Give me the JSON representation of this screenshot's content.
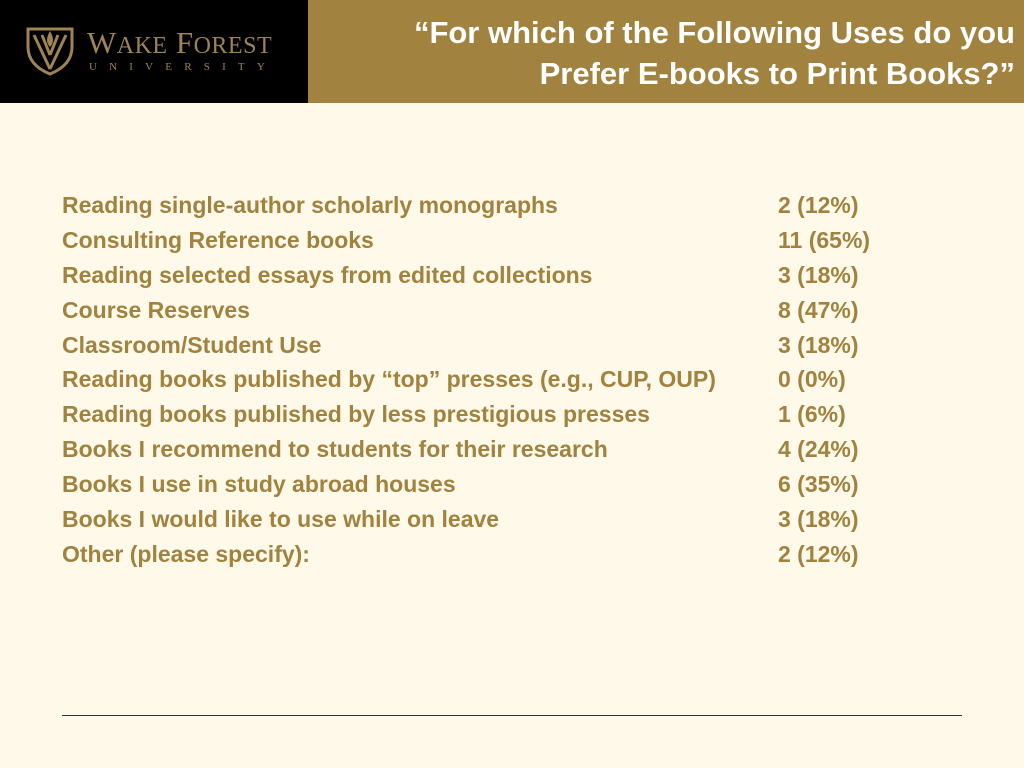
{
  "logo": {
    "name_first_letter": "W",
    "name_rest_1": "AKE",
    "name_space": " ",
    "name_second_letter": "F",
    "name_rest_2": "OREST",
    "subtitle": "UNIVERSITY"
  },
  "header": {
    "title_line1": "“For which of the Following Uses do you",
    "title_line2": "Prefer E-books to Print Books?”"
  },
  "results": [
    {
      "label": "Reading single-author scholarly monographs",
      "value": "2 (12%)"
    },
    {
      "label": "Consulting Reference books",
      "value": "11 (65%)"
    },
    {
      "label": "Reading selected essays from edited collections",
      "value": "3 (18%)"
    },
    {
      "label": "Course Reserves",
      "value": "8 (47%)"
    },
    {
      "label": "Classroom/Student Use",
      "value": "3 (18%)"
    },
    {
      "label": "Reading books published by “top” presses (e.g., CUP, OUP)",
      "value": "0 (0%)"
    },
    {
      "label": "Reading books published by less prestigious presses",
      "value": "1 (6%)"
    },
    {
      "label": "Books I recommend to students for their research",
      "value": "4 (24%)"
    },
    {
      "label": "Books I use in study abroad houses",
      "value": "6 (35%)"
    },
    {
      "label": "Books I would like to use while on leave",
      "value": "3 (18%)"
    },
    {
      "label": "Other (please specify):",
      "value": "2 (12%)"
    }
  ],
  "colors": {
    "background": "#FEF9E8",
    "accent_gold": "#A1823F",
    "logo_gold": "#9E8355",
    "logo_background": "#000000",
    "title_text": "#FFFFFF"
  }
}
